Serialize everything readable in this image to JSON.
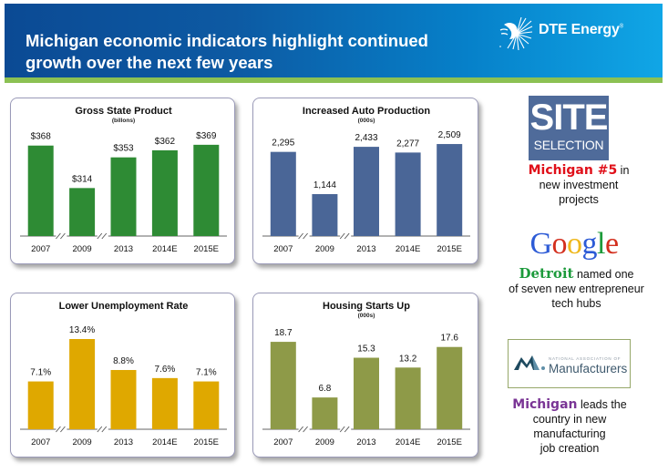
{
  "header": {
    "title_line1": "Michigan economic indicators highlight continued",
    "title_line2": "growth over the next few years",
    "logo_text": "DTE Energy",
    "logo_mark": "®",
    "logo_icon": "dte-sun-icon",
    "colors": {
      "gradient_start": "#0b4a94",
      "gradient_end": "#10a6e6",
      "stripe": "#8cc153"
    }
  },
  "chart_data": [
    {
      "id": "gsp",
      "type": "bar",
      "title": "Gross State Product",
      "subtitle": "(billons)",
      "categories": [
        "2007",
        "2009",
        "2013",
        "2014E",
        "2015E"
      ],
      "values": [
        368,
        314,
        353,
        362,
        369
      ],
      "value_labels": [
        "$368",
        "$314",
        "$353",
        "$362",
        "$369"
      ],
      "axis_breaks_after": [
        "2007",
        "2009"
      ],
      "ylim": [
        253,
        370
      ],
      "color": "#2e8b34",
      "xlabel": "",
      "ylabel": "",
      "grid": false,
      "legend": "none"
    },
    {
      "id": "auto",
      "type": "bar",
      "title": "Increased Auto Production",
      "subtitle": "(000s)",
      "categories": [
        "2007",
        "2009",
        "2013",
        "2014E",
        "2015E"
      ],
      "values": [
        2295,
        1144,
        2433,
        2277,
        2509
      ],
      "value_labels": [
        "2,295",
        "1,144",
        "2,433",
        "2,277",
        "2,509"
      ],
      "axis_breaks_after": [
        "2007",
        "2009"
      ],
      "ylim": [
        0,
        2510
      ],
      "color": "#4a6697",
      "xlabel": "",
      "ylabel": "",
      "grid": false,
      "legend": "none"
    },
    {
      "id": "unemp",
      "type": "bar",
      "title": "Lower Unemployment Rate",
      "subtitle": "",
      "categories": [
        "2007",
        "2009",
        "2013",
        "2014E",
        "2015E"
      ],
      "values": [
        7.1,
        13.4,
        8.8,
        7.6,
        7.1
      ],
      "value_labels": [
        "7.1%",
        "13.4%",
        "8.8%",
        "7.6%",
        "7.1%"
      ],
      "axis_breaks_after": [
        "2007",
        "2009"
      ],
      "ylim": [
        0,
        13.4
      ],
      "color": "#dfa800",
      "xlabel": "",
      "ylabel": "",
      "grid": false,
      "legend": "none"
    },
    {
      "id": "housing",
      "type": "bar",
      "title": "Housing Starts Up",
      "subtitle": "(000s)",
      "categories": [
        "2007",
        "2009",
        "2013",
        "2014E",
        "2015E"
      ],
      "values": [
        18.7,
        6.8,
        15.3,
        13.2,
        17.6
      ],
      "value_labels": [
        "18.7",
        "6.8",
        "15.3",
        "13.2",
        "17.6"
      ],
      "axis_breaks_after": [
        "2007",
        "2009"
      ],
      "ylim": [
        0,
        19.3
      ],
      "color": "#8e9a48",
      "xlabel": "",
      "ylabel": "",
      "grid": false,
      "legend": "none"
    }
  ],
  "sidebar": {
    "site_selection": {
      "logo_big": "SITE",
      "logo_small": "SELECTION",
      "highlight": "Michigan #5",
      "text_after": " in",
      "line2": "new investment",
      "line3": "projects"
    },
    "google": {
      "logo_letters": [
        "G",
        "o",
        "o",
        "g",
        "l",
        "e"
      ],
      "highlight": "Detroit",
      "text_after": " named one",
      "line2": "of seven new entrepreneur",
      "line3": "tech hubs"
    },
    "nam": {
      "logo_small": "NATIONAL ASSOCIATION OF",
      "logo_big": "Manufacturers",
      "highlight": "Michigan",
      "text_after": " leads the",
      "line2": "country in new",
      "line3": "manufacturing",
      "line4": "job creation"
    }
  }
}
